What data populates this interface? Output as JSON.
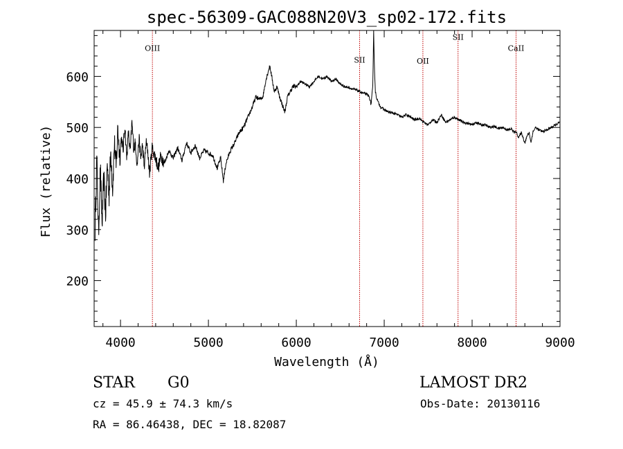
{
  "chart_data": {
    "type": "line",
    "title": "spec-56309-GAC088N20V3_sp02-172.fits",
    "xlabel": "Wavelength (Å)",
    "ylabel": "Flux (relative)",
    "xlim": [
      3700,
      9000
    ],
    "ylim": [
      110,
      690
    ],
    "x_ticks": [
      {
        "value": 4000,
        "label": "4000"
      },
      {
        "value": 5000,
        "label": "5000"
      },
      {
        "value": 6000,
        "label": "6000"
      },
      {
        "value": 7000,
        "label": "7000"
      },
      {
        "value": 8000,
        "label": "8000"
      },
      {
        "value": 9000,
        "label": "9000"
      }
    ],
    "y_ticks": [
      {
        "value": 200,
        "label": "200"
      },
      {
        "value": 300,
        "label": "300"
      },
      {
        "value": 400,
        "label": "400"
      },
      {
        "value": 500,
        "label": "500"
      },
      {
        "value": 600,
        "label": "600"
      }
    ],
    "grid": false,
    "line_color": "#000000",
    "marker_line_color": "#c00000",
    "spectral_lines": [
      {
        "label": "OIII",
        "wavelength": 4363,
        "label_flux": 650
      },
      {
        "label": "SII",
        "wavelength": 6720,
        "label_flux": 627
      },
      {
        "label": "OII",
        "wavelength": 7440,
        "label_flux": 625
      },
      {
        "label": "SII",
        "wavelength": 7840,
        "label_flux": 672
      },
      {
        "label": "CaII",
        "wavelength": 8500,
        "label_flux": 650
      }
    ],
    "series": [
      {
        "x": [
          3710,
          3730,
          3750,
          3770,
          3790,
          3810,
          3830,
          3850,
          3870,
          3890,
          3910,
          3930,
          3950,
          3970,
          3990,
          4010,
          4030,
          4050,
          4070,
          4090,
          4110,
          4130,
          4150,
          4170,
          4190,
          4210,
          4230,
          4250,
          4270,
          4290,
          4310,
          4330,
          4360,
          4400,
          4430,
          4460,
          4500,
          4550,
          4600,
          4650,
          4700,
          4750,
          4800,
          4850,
          4900,
          4950,
          5000,
          5050,
          5100,
          5140,
          5170,
          5200,
          5250,
          5300,
          5350,
          5400,
          5450,
          5500,
          5540,
          5580,
          5620,
          5650,
          5680,
          5700,
          5720,
          5750,
          5780,
          5810,
          5840,
          5870,
          5900,
          5930,
          5960,
          6000,
          6050,
          6100,
          6150,
          6200,
          6250,
          6300,
          6350,
          6400,
          6450,
          6500,
          6550,
          6600,
          6650,
          6700,
          6750,
          6800,
          6830,
          6850,
          6870,
          6880,
          6890,
          6900,
          6910,
          6930,
          6960,
          7000,
          7050,
          7100,
          7150,
          7200,
          7250,
          7300,
          7350,
          7400,
          7450,
          7500,
          7550,
          7600,
          7650,
          7700,
          7750,
          7800,
          7850,
          7900,
          7950,
          8000,
          8050,
          8100,
          8150,
          8200,
          8250,
          8300,
          8350,
          8400,
          8450,
          8480,
          8500,
          8530,
          8560,
          8600,
          8630,
          8650,
          8670,
          8690,
          8720,
          8760,
          8800,
          8850,
          8900,
          8950,
          9000
        ],
        "y": [
          300,
          440,
          290,
          420,
          310,
          400,
          330,
          430,
          370,
          455,
          380,
          470,
          420,
          500,
          445,
          480,
          455,
          505,
          440,
          490,
          450,
          510,
          460,
          470,
          425,
          480,
          440,
          465,
          420,
          470,
          455,
          410,
          460,
          440,
          420,
          445,
          430,
          455,
          440,
          460,
          435,
          470,
          450,
          465,
          440,
          455,
          450,
          445,
          420,
          440,
          395,
          430,
          455,
          470,
          490,
          500,
          520,
          540,
          560,
          555,
          560,
          590,
          610,
          620,
          600,
          570,
          580,
          560,
          545,
          530,
          560,
          570,
          580,
          580,
          590,
          585,
          580,
          590,
          600,
          595,
          600,
          590,
          595,
          585,
          580,
          578,
          575,
          572,
          568,
          565,
          560,
          545,
          580,
          690,
          610,
          570,
          560,
          550,
          540,
          535,
          530,
          528,
          525,
          520,
          525,
          520,
          515,
          518,
          510,
          505,
          515,
          510,
          525,
          510,
          515,
          520,
          515,
          510,
          508,
          505,
          510,
          505,
          505,
          500,
          502,
          498,
          500,
          495,
          497,
          490,
          492,
          480,
          490,
          470,
          485,
          490,
          470,
          490,
          500,
          495,
          492,
          495,
          500,
          505,
          510
        ]
      }
    ]
  },
  "info": {
    "object_type": "STAR",
    "subclass": "G0",
    "survey": "LAMOST DR2",
    "cz": "cz = 45.9 ± 74.3 km/s",
    "obs_date": "Obs-Date: 20130116",
    "radec": "RA =  86.46438, DEC =  18.82087"
  }
}
